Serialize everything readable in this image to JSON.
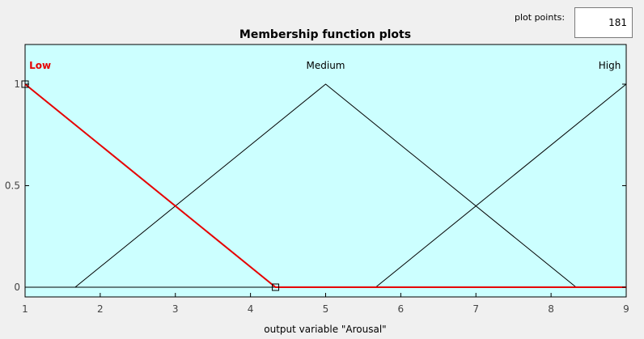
{
  "plot_points": {
    "label": "plot points:",
    "value": "181"
  },
  "colors": {
    "window_bg": "#f0f0f0",
    "plot_bg": "#ccffff",
    "selected_mf": "#e60000",
    "mf_line": "#000000"
  },
  "chart_data": {
    "type": "line",
    "title": "Membership function plots",
    "xlabel": "output variable \"Arousal\"",
    "ylabel": "",
    "xlim": [
      1,
      9
    ],
    "ylim": [
      0,
      1.2
    ],
    "xticks": [
      1,
      2,
      3,
      4,
      5,
      6,
      7,
      8,
      9
    ],
    "yticks": [
      0,
      0.5,
      1
    ],
    "ytick_labels": [
      "0",
      "0.5",
      "1"
    ],
    "grid": false,
    "series": [
      {
        "name": "Low",
        "selected": true,
        "x": [
          1,
          1,
          4.333,
          9
        ],
        "y": [
          1,
          1,
          0,
          0
        ],
        "handles": [
          [
            1,
            1
          ],
          [
            4.333,
            0
          ]
        ]
      },
      {
        "name": "Medium",
        "selected": false,
        "x": [
          1,
          1.667,
          5,
          8.333,
          9
        ],
        "y": [
          0,
          0,
          1,
          0,
          0
        ]
      },
      {
        "name": "High",
        "selected": false,
        "x": [
          1,
          5.667,
          9,
          9
        ],
        "y": [
          0,
          0,
          1,
          1
        ]
      }
    ],
    "series_label_x": [
      1.2,
      5,
      8.78
    ]
  }
}
